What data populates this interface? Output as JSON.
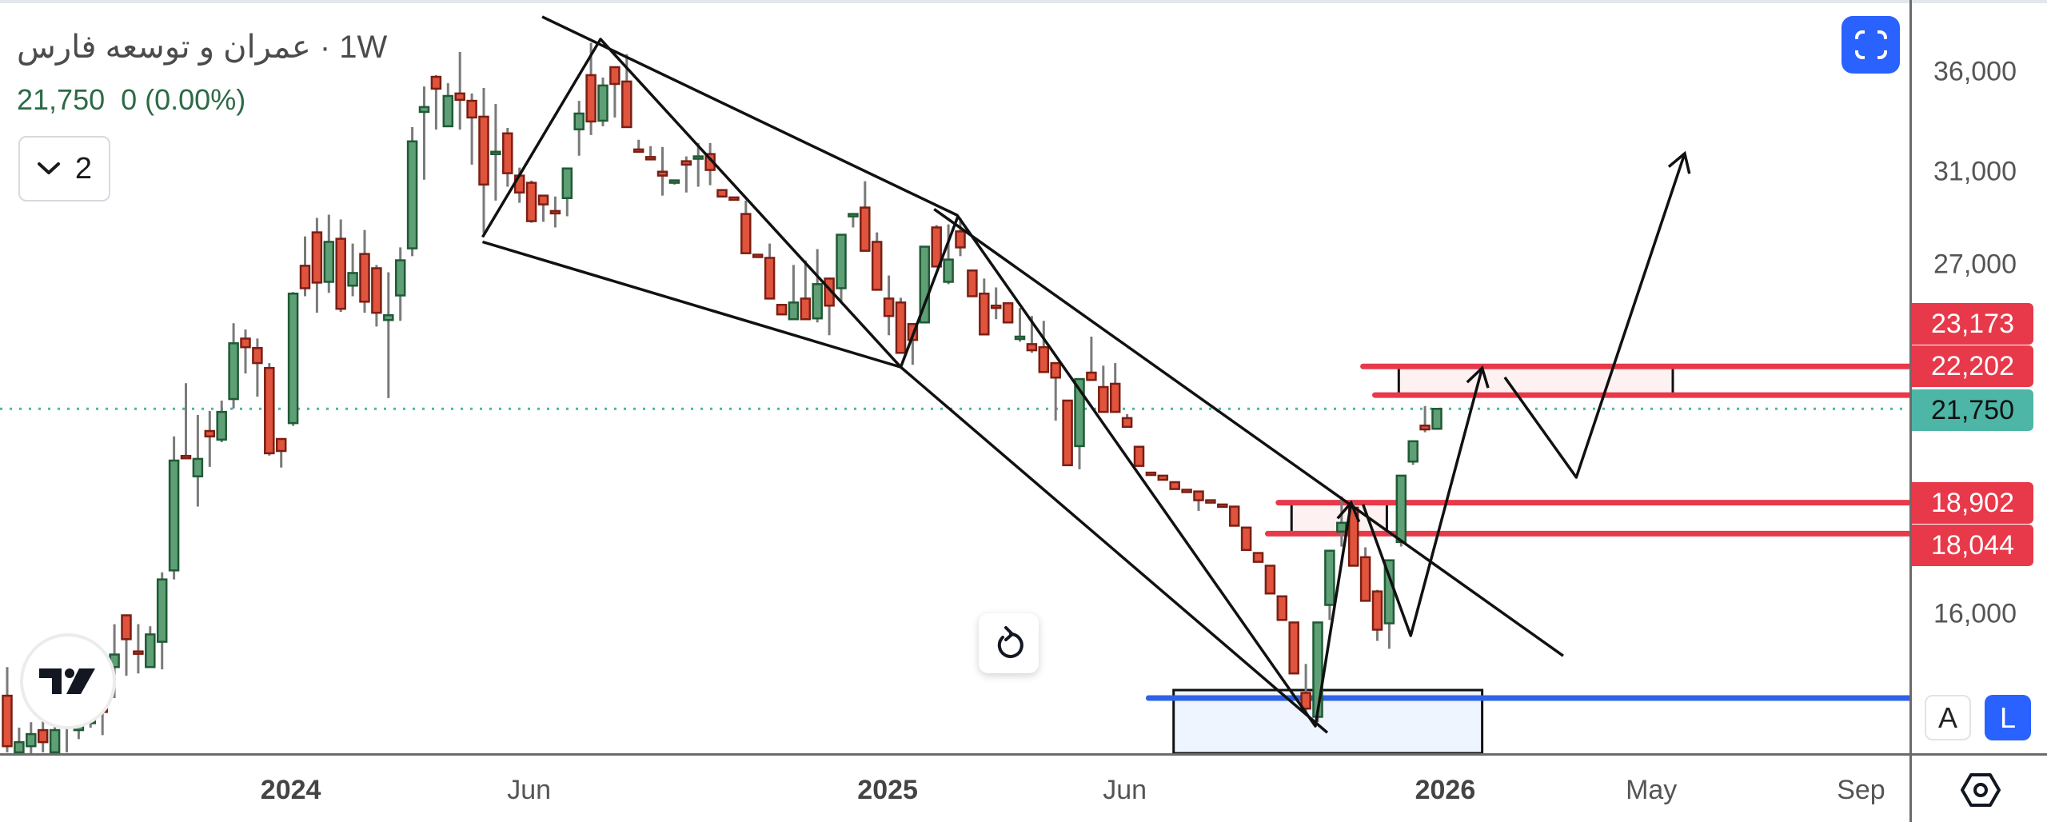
{
  "header": {
    "symbol_name": "عمران و توسعه فارس",
    "interval": "· 1W",
    "last_price": "21,750",
    "change": "0 (0.00%)",
    "collapse_count": "2"
  },
  "buttons": {
    "fullscreen_icon": "fullscreen-icon",
    "reset_icon": "reset-icon",
    "auto_scale": "A",
    "log_scale": "L",
    "settings_icon": "hexagon-settings-icon"
  },
  "colors": {
    "up": "#5e9f76",
    "up_border": "#1f5a35",
    "down": "#e0533d",
    "down_border": "#7a1f14",
    "wick": "#7a7a7a",
    "level_red": "#e8394a",
    "last_price": "#4db6a6",
    "support_blue": "#2f62e8",
    "accent": "#2962ff"
  },
  "chart_data": {
    "type": "candlestick",
    "interval": "1W",
    "y_scale": "log",
    "grid": false,
    "ohlc_format": [
      "open",
      "high",
      "low",
      "close"
    ],
    "candles": [
      [
        14160,
        14780,
        13010,
        13130
      ],
      [
        13010,
        13500,
        12900,
        13210
      ],
      [
        13130,
        13610,
        12980,
        13370
      ],
      [
        13450,
        13720,
        13010,
        13210
      ],
      [
        13010,
        13720,
        12900,
        13450
      ],
      [
        13500,
        13720,
        13010,
        13630
      ],
      [
        13450,
        13580,
        13270,
        13530
      ],
      [
        13590,
        13720,
        13500,
        13690
      ],
      [
        14060,
        15050,
        13350,
        13820
      ],
      [
        14780,
        15760,
        14110,
        15060
      ],
      [
        15970,
        15990,
        14590,
        15410
      ],
      [
        15130,
        15760,
        14640,
        15100
      ],
      [
        14780,
        15710,
        14770,
        15520
      ],
      [
        15350,
        17030,
        14730,
        16850
      ],
      [
        17080,
        20870,
        16850,
        20130
      ],
      [
        20270,
        22600,
        20240,
        20240
      ],
      [
        19660,
        21550,
        18790,
        20180
      ],
      [
        21040,
        21680,
        19940,
        20870
      ],
      [
        20770,
        22020,
        20690,
        21650
      ],
      [
        22070,
        24720,
        21760,
        23990
      ],
      [
        24160,
        24490,
        22930,
        23850
      ],
      [
        23820,
        24160,
        22150,
        23290
      ],
      [
        23120,
        23290,
        20280,
        20350
      ],
      [
        20790,
        20790,
        19920,
        20420
      ],
      [
        21290,
        25900,
        21200,
        25840
      ],
      [
        26940,
        28150,
        25740,
        26050
      ],
      [
        28320,
        28940,
        25110,
        26270
      ],
      [
        26300,
        29080,
        25870,
        27920
      ],
      [
        28050,
        28870,
        25140,
        25260
      ],
      [
        26150,
        27850,
        25740,
        26650
      ],
      [
        27420,
        28420,
        25110,
        25530
      ],
      [
        26840,
        26970,
        24600,
        25110
      ],
      [
        24840,
        26680,
        22100,
        25020
      ],
      [
        25770,
        27690,
        24810,
        27160
      ],
      [
        27650,
        33150,
        27330,
        32450
      ],
      [
        33910,
        35230,
        30640,
        34160
      ],
      [
        35740,
        35830,
        33030,
        35110
      ],
      [
        33190,
        35400,
        33190,
        34730
      ],
      [
        34860,
        37100,
        33030,
        34530
      ],
      [
        34480,
        34860,
        31340,
        33630
      ],
      [
        33670,
        35150,
        28290,
        30420
      ],
      [
        31900,
        34320,
        29700,
        31950
      ],
      [
        32840,
        33110,
        30320,
        30940
      ],
      [
        30830,
        31200,
        29600,
        30060
      ],
      [
        30500,
        30600,
        28730,
        28800
      ],
      [
        29920,
        29920,
        28770,
        29530
      ],
      [
        29240,
        29880,
        28530,
        29200
      ],
      [
        29810,
        31160,
        29010,
        31160
      ],
      [
        33040,
        34480,
        31760,
        33830
      ],
      [
        35830,
        37600,
        32760,
        33430
      ],
      [
        33470,
        35700,
        33190,
        35280
      ],
      [
        36260,
        36260,
        33630,
        35360
      ],
      [
        35490,
        36970,
        33150,
        33150
      ],
      [
        32060,
        32530,
        32020,
        32020
      ],
      [
        31700,
        32220,
        31660,
        31660
      ],
      [
        31010,
        32180,
        29920,
        30830
      ],
      [
        30570,
        30610,
        30420,
        30610
      ],
      [
        31500,
        31730,
        30060,
        31340
      ],
      [
        31690,
        32370,
        30320,
        31730
      ],
      [
        31840,
        32370,
        30390,
        31090
      ],
      [
        30170,
        30170,
        29880,
        29880
      ],
      [
        29840,
        29840,
        29810,
        29810
      ],
      [
        29110,
        29700,
        27450,
        27450
      ],
      [
        27390,
        27390,
        27360,
        27360
      ],
      [
        27260,
        27850,
        25650,
        25650
      ],
      [
        25410,
        25410,
        25050,
        25050
      ],
      [
        24870,
        26970,
        24870,
        25500
      ],
      [
        25650,
        27160,
        24870,
        24870
      ],
      [
        24900,
        27620,
        24750,
        26210
      ],
      [
        26430,
        26430,
        24280,
        25380
      ],
      [
        26050,
        28220,
        25560,
        28220
      ],
      [
        29080,
        29110,
        28530,
        29110
      ],
      [
        29390,
        30570,
        27550,
        27550
      ],
      [
        27920,
        28320,
        25990,
        25990
      ],
      [
        25650,
        26550,
        24280,
        24990
      ],
      [
        25500,
        25680,
        23650,
        23650
      ],
      [
        24690,
        24690,
        23230,
        24110
      ],
      [
        24750,
        27720,
        24750,
        27720
      ],
      [
        28530,
        28630,
        26910,
        26910
      ],
      [
        26300,
        28660,
        26210,
        27190
      ],
      [
        28360,
        28940,
        27330,
        27690
      ],
      [
        26750,
        26750,
        25740,
        25740
      ],
      [
        25840,
        26430,
        24310,
        24310
      ],
      [
        25380,
        26080,
        24870,
        25350
      ],
      [
        25470,
        25470,
        24750,
        24750
      ],
      [
        24200,
        25290,
        24050,
        24230
      ],
      [
        23960,
        24990,
        23650,
        23740
      ],
      [
        23850,
        24810,
        22980,
        22980
      ],
      [
        23290,
        23290,
        21370,
        22790
      ],
      [
        22020,
        22020,
        19990,
        19990
      ],
      [
        20570,
        22740,
        19870,
        22740
      ],
      [
        22960,
        24230,
        22710,
        22710
      ],
      [
        22470,
        23200,
        21650,
        21650
      ],
      [
        22580,
        23290,
        21650,
        21650
      ],
      [
        21450,
        21580,
        21170,
        21170
      ],
      [
        20550,
        20550,
        19970,
        19970
      ],
      [
        19770,
        19770,
        19750,
        19750
      ],
      [
        19680,
        19680,
        19560,
        19560
      ],
      [
        19490,
        19490,
        19290,
        19290
      ],
      [
        19270,
        19270,
        19260,
        19260
      ],
      [
        19220,
        19220,
        18670,
        18970
      ],
      [
        18970,
        18970,
        18950,
        18950
      ],
      [
        18850,
        18850,
        18830,
        18830
      ],
      [
        18790,
        18790,
        18260,
        18260
      ],
      [
        18210,
        18210,
        17610,
        17610
      ],
      [
        17530,
        17530,
        17300,
        17300
      ],
      [
        17200,
        17200,
        16500,
        16500
      ],
      [
        16430,
        16430,
        15860,
        15860
      ],
      [
        15800,
        15800,
        14640,
        14640
      ],
      [
        14220,
        14850,
        13770,
        13890
      ],
      [
        13720,
        15800,
        13610,
        15800
      ],
      [
        16220,
        17590,
        15860,
        17590
      ],
      [
        18100,
        19080,
        17700,
        18340
      ],
      [
        18760,
        18900,
        17200,
        17200
      ],
      [
        17420,
        17680,
        16320,
        16320
      ],
      [
        16550,
        16590,
        15370,
        15630
      ],
      [
        15780,
        17340,
        15190,
        17340
      ],
      [
        17820,
        19680,
        17700,
        19680
      ],
      [
        20100,
        20720,
        20000,
        20720
      ],
      [
        21210,
        21840,
        21000,
        21090
      ],
      [
        21110,
        21750,
        21110,
        21750
      ]
    ],
    "y_ticks": [
      "36,000",
      "31,000",
      "27,000",
      "16,000"
    ],
    "y_tick_values": [
      36000,
      31000,
      27000,
      16000
    ],
    "x_ticks": [
      {
        "label": "2024",
        "bar": 23.8,
        "year": true
      },
      {
        "label": "Jun",
        "bar": 43.8,
        "year": false
      },
      {
        "label": "2025",
        "bar": 73.9,
        "year": true
      },
      {
        "label": "Jun",
        "bar": 93.8,
        "year": false
      },
      {
        "label": "2026",
        "bar": 120.7,
        "year": true
      },
      {
        "label": "May",
        "bar": 138.0,
        "year": false
      },
      {
        "label": "Sep",
        "bar": 155.6,
        "year": false
      }
    ],
    "last_price": 21750,
    "price_labels": [
      {
        "text": "23,173",
        "value": 23173,
        "kind": "level"
      },
      {
        "text": "22,202",
        "value": 22202,
        "kind": "level"
      },
      {
        "text": "21,750",
        "value": 21750,
        "kind": "last"
      },
      {
        "text": "18,902",
        "value": 18902,
        "kind": "level"
      },
      {
        "text": "18,044",
        "value": 18044,
        "kind": "level"
      }
    ],
    "drawings": {
      "trend_lines": [
        [
          [
            44.9,
            39100
          ],
          [
            79.8,
            29040
          ]
        ],
        [
          [
            39.9,
            27920
          ],
          [
            75.0,
            23150
          ]
        ],
        [
          [
            77.8,
            29320
          ],
          [
            130.6,
            15030
          ]
        ],
        [
          [
            75.0,
            23150
          ],
          [
            110.8,
            13400
          ]
        ]
      ],
      "zigzag": [
        [
          39.9,
          28120
        ],
        [
          49.8,
          37810
        ],
        [
          75.0,
          23150
        ],
        [
          79.8,
          29010
        ],
        [
          109.8,
          13530
        ],
        [
          112.8,
          18900
        ]
      ],
      "projection_arrows": [
        [
          [
            113.8,
            18850
          ],
          [
            117.8,
            15490
          ],
          [
            123.8,
            23120
          ]
        ],
        [
          [
            125.7,
            22800
          ],
          [
            131.7,
            19630
          ],
          [
            140.8,
            31870
          ]
        ]
      ],
      "zones": [
        {
          "from_bar": 116.8,
          "to_bar": 139.8,
          "top": 23173,
          "bottom": 22202,
          "kind": "resistance"
        },
        {
          "from_bar": 107.8,
          "to_bar": 115.8,
          "top": 18902,
          "bottom": 18044,
          "kind": "resistance"
        },
        {
          "from_bar": 97.9,
          "to_bar": 123.8,
          "top": 14280,
          "bottom": 11000,
          "kind": "support"
        }
      ],
      "horizontal_levels": [
        {
          "value": 23173,
          "from_bar": 113.8,
          "color": "red"
        },
        {
          "value": 22202,
          "from_bar": 114.8,
          "color": "red"
        },
        {
          "value": 18902,
          "from_bar": 106.7,
          "color": "red"
        },
        {
          "value": 18044,
          "from_bar": 105.8,
          "color": "red"
        },
        {
          "value": 14110,
          "from_bar": 95.8,
          "color": "blue"
        }
      ]
    }
  }
}
